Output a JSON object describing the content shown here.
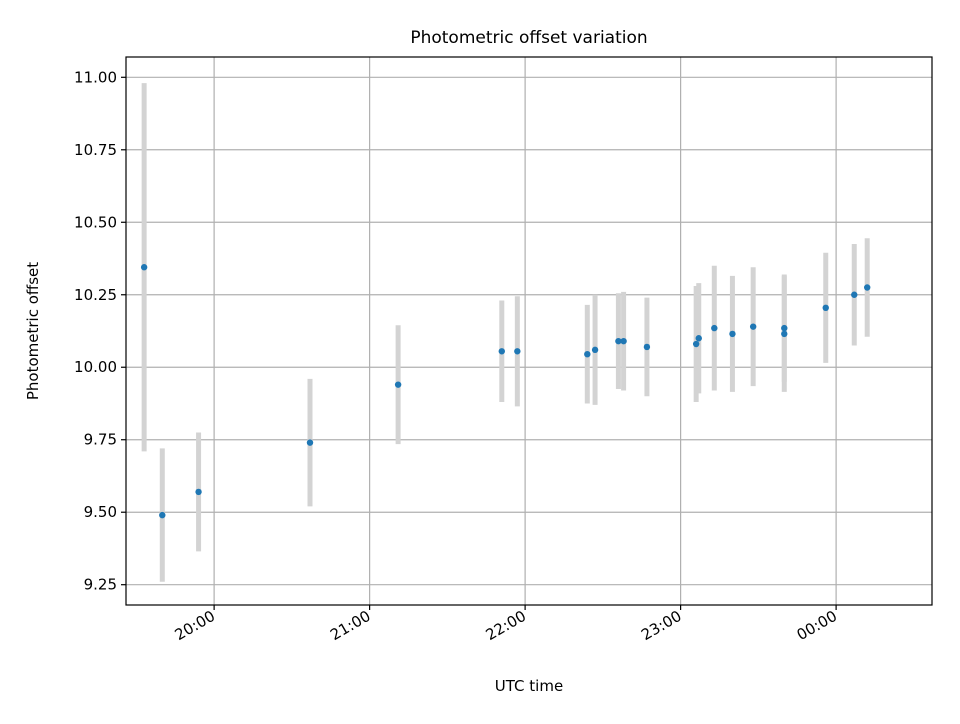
{
  "chart_data": {
    "type": "scatter",
    "title": "Photometric offset variation",
    "xlabel": "UTC time",
    "ylabel": "Photometric offset",
    "x_ticks": [
      "20:00",
      "21:00",
      "22:00",
      "23:00",
      "00:00"
    ],
    "y_ticks": [
      "9.25",
      "9.50",
      "9.75",
      "10.00",
      "10.25",
      "10.50",
      "10.75",
      "11.00"
    ],
    "xlim": [
      "19:26",
      "00:37"
    ],
    "ylim": [
      9.18,
      11.07
    ],
    "grid": true,
    "point_color": "#1f77b4",
    "errorbar_color": "#d3d3d3",
    "series": [
      {
        "points": [
          {
            "x": "19:33",
            "y": 10.345,
            "err": 0.635
          },
          {
            "x": "19:40",
            "y": 9.49,
            "err": 0.23
          },
          {
            "x": "19:54",
            "y": 9.57,
            "err": 0.205
          },
          {
            "x": "20:37",
            "y": 9.74,
            "err": 0.22
          },
          {
            "x": "21:11",
            "y": 9.94,
            "err": 0.205
          },
          {
            "x": "21:51",
            "y": 10.055,
            "err": 0.175
          },
          {
            "x": "21:57",
            "y": 10.055,
            "err": 0.19
          },
          {
            "x": "22:24",
            "y": 10.045,
            "err": 0.17
          },
          {
            "x": "22:27",
            "y": 10.06,
            "err": 0.19
          },
          {
            "x": "22:36",
            "y": 10.09,
            "err": 0.165
          },
          {
            "x": "22:38",
            "y": 10.09,
            "err": 0.17
          },
          {
            "x": "22:47",
            "y": 10.07,
            "err": 0.17
          },
          {
            "x": "23:06",
            "y": 10.08,
            "err": 0.2
          },
          {
            "x": "23:07",
            "y": 10.1,
            "err": 0.19
          },
          {
            "x": "23:13",
            "y": 10.135,
            "err": 0.215
          },
          {
            "x": "23:20",
            "y": 10.115,
            "err": 0.2
          },
          {
            "x": "23:28",
            "y": 10.14,
            "err": 0.205
          },
          {
            "x": "23:40",
            "y": 10.135,
            "err": 0.185
          },
          {
            "x": "23:40",
            "y": 10.115,
            "err": 0.2
          },
          {
            "x": "23:56",
            "y": 10.205,
            "err": 0.19
          },
          {
            "x": "00:07",
            "y": 10.25,
            "err": 0.175
          },
          {
            "x": "00:12",
            "y": 10.275,
            "err": 0.17
          }
        ]
      }
    ]
  }
}
